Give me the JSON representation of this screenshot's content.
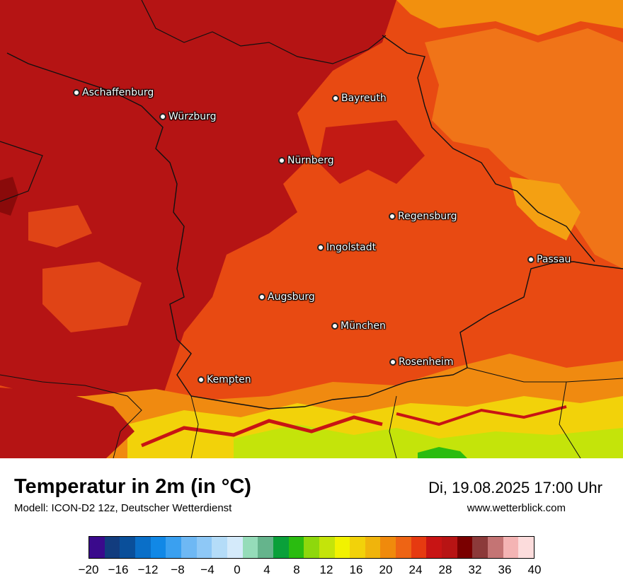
{
  "map": {
    "cities": [
      {
        "name": "Aschaffenburg"
      },
      {
        "name": "Würzburg"
      },
      {
        "name": "Bayreuth"
      },
      {
        "name": "Nürnberg"
      },
      {
        "name": "Regensburg"
      },
      {
        "name": "Ingolstadt"
      },
      {
        "name": "Passau"
      },
      {
        "name": "Augsburg"
      },
      {
        "name": "München"
      },
      {
        "name": "Rosenheim"
      },
      {
        "name": "Kempten"
      }
    ]
  },
  "footer": {
    "title": "Temperatur in 2m (in °C)",
    "subtitle": "Modell: ICON-D2 12z, Deutscher Wetterdienst",
    "datetime": "Di, 19.08.2025 17:00 Uhr",
    "website": "www.wetterblick.com"
  },
  "legend": {
    "ticks": [
      "−20",
      "−16",
      "−12",
      "−8",
      "−4",
      "0",
      "4",
      "8",
      "12",
      "16",
      "20",
      "24",
      "28",
      "32",
      "36",
      "40"
    ],
    "colors": [
      "#3a0a8c",
      "#123c7e",
      "#0a4f9a",
      "#0a6fc8",
      "#1188e6",
      "#3aa0f0",
      "#6eb8f4",
      "#8ec8f6",
      "#b4dcf8",
      "#d4eafa",
      "#95dcb9",
      "#65b48c",
      "#0aa03a",
      "#2abc10",
      "#8ed80c",
      "#c4e40a",
      "#f2f200",
      "#f2d20a",
      "#f0b40c",
      "#f08a0c",
      "#ee6414",
      "#e63a10",
      "#c81414",
      "#b81414",
      "#7a0000",
      "#8c3a3a",
      "#c47474",
      "#f4b4b4",
      "#fcdcdc"
    ]
  }
}
